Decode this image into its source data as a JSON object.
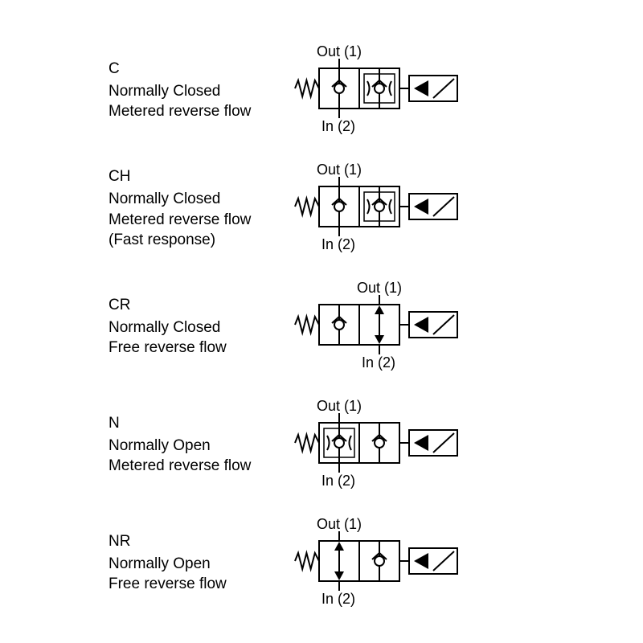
{
  "stroke_color": "#000000",
  "stroke_width": 2,
  "background_color": "#ffffff",
  "font_family": "Arial, Helvetica, sans-serif",
  "label_fontsize": 19,
  "port_label_fontsize": 18,
  "valves": [
    {
      "code": "C",
      "line1": "Normally Closed",
      "line2": "Metered reverse flow",
      "line3": "",
      "out_label": "Out (1)",
      "in_label": "In (2)",
      "left_cell": "check_up",
      "right_cell": "check_up_restrictor",
      "port_cell": "left"
    },
    {
      "code": "CH",
      "line1": "Normally Closed",
      "line2": "Metered reverse flow",
      "line3": "(Fast response)",
      "out_label": "Out (1)",
      "in_label": "In (2)",
      "left_cell": "check_up",
      "right_cell": "check_up_restrictor",
      "port_cell": "left"
    },
    {
      "code": "CR",
      "line1": "Normally Closed",
      "line2": "Free reverse flow",
      "line3": "",
      "out_label": "Out (1)",
      "in_label": "In (2)",
      "left_cell": "check_up",
      "right_cell": "double_arrow",
      "port_cell": "right"
    },
    {
      "code": "N",
      "line1": "Normally Open",
      "line2": "Metered reverse flow",
      "line3": "",
      "out_label": "Out (1)",
      "in_label": "In (2)",
      "left_cell": "check_up_restrictor",
      "right_cell": "check_up",
      "port_cell": "left"
    },
    {
      "code": "NR",
      "line1": "Normally Open",
      "line2": "Free reverse flow",
      "line3": "",
      "out_label": "Out (1)",
      "in_label": "In (2)",
      "left_cell": "double_arrow",
      "right_cell": "check_up",
      "port_cell": "left"
    }
  ]
}
